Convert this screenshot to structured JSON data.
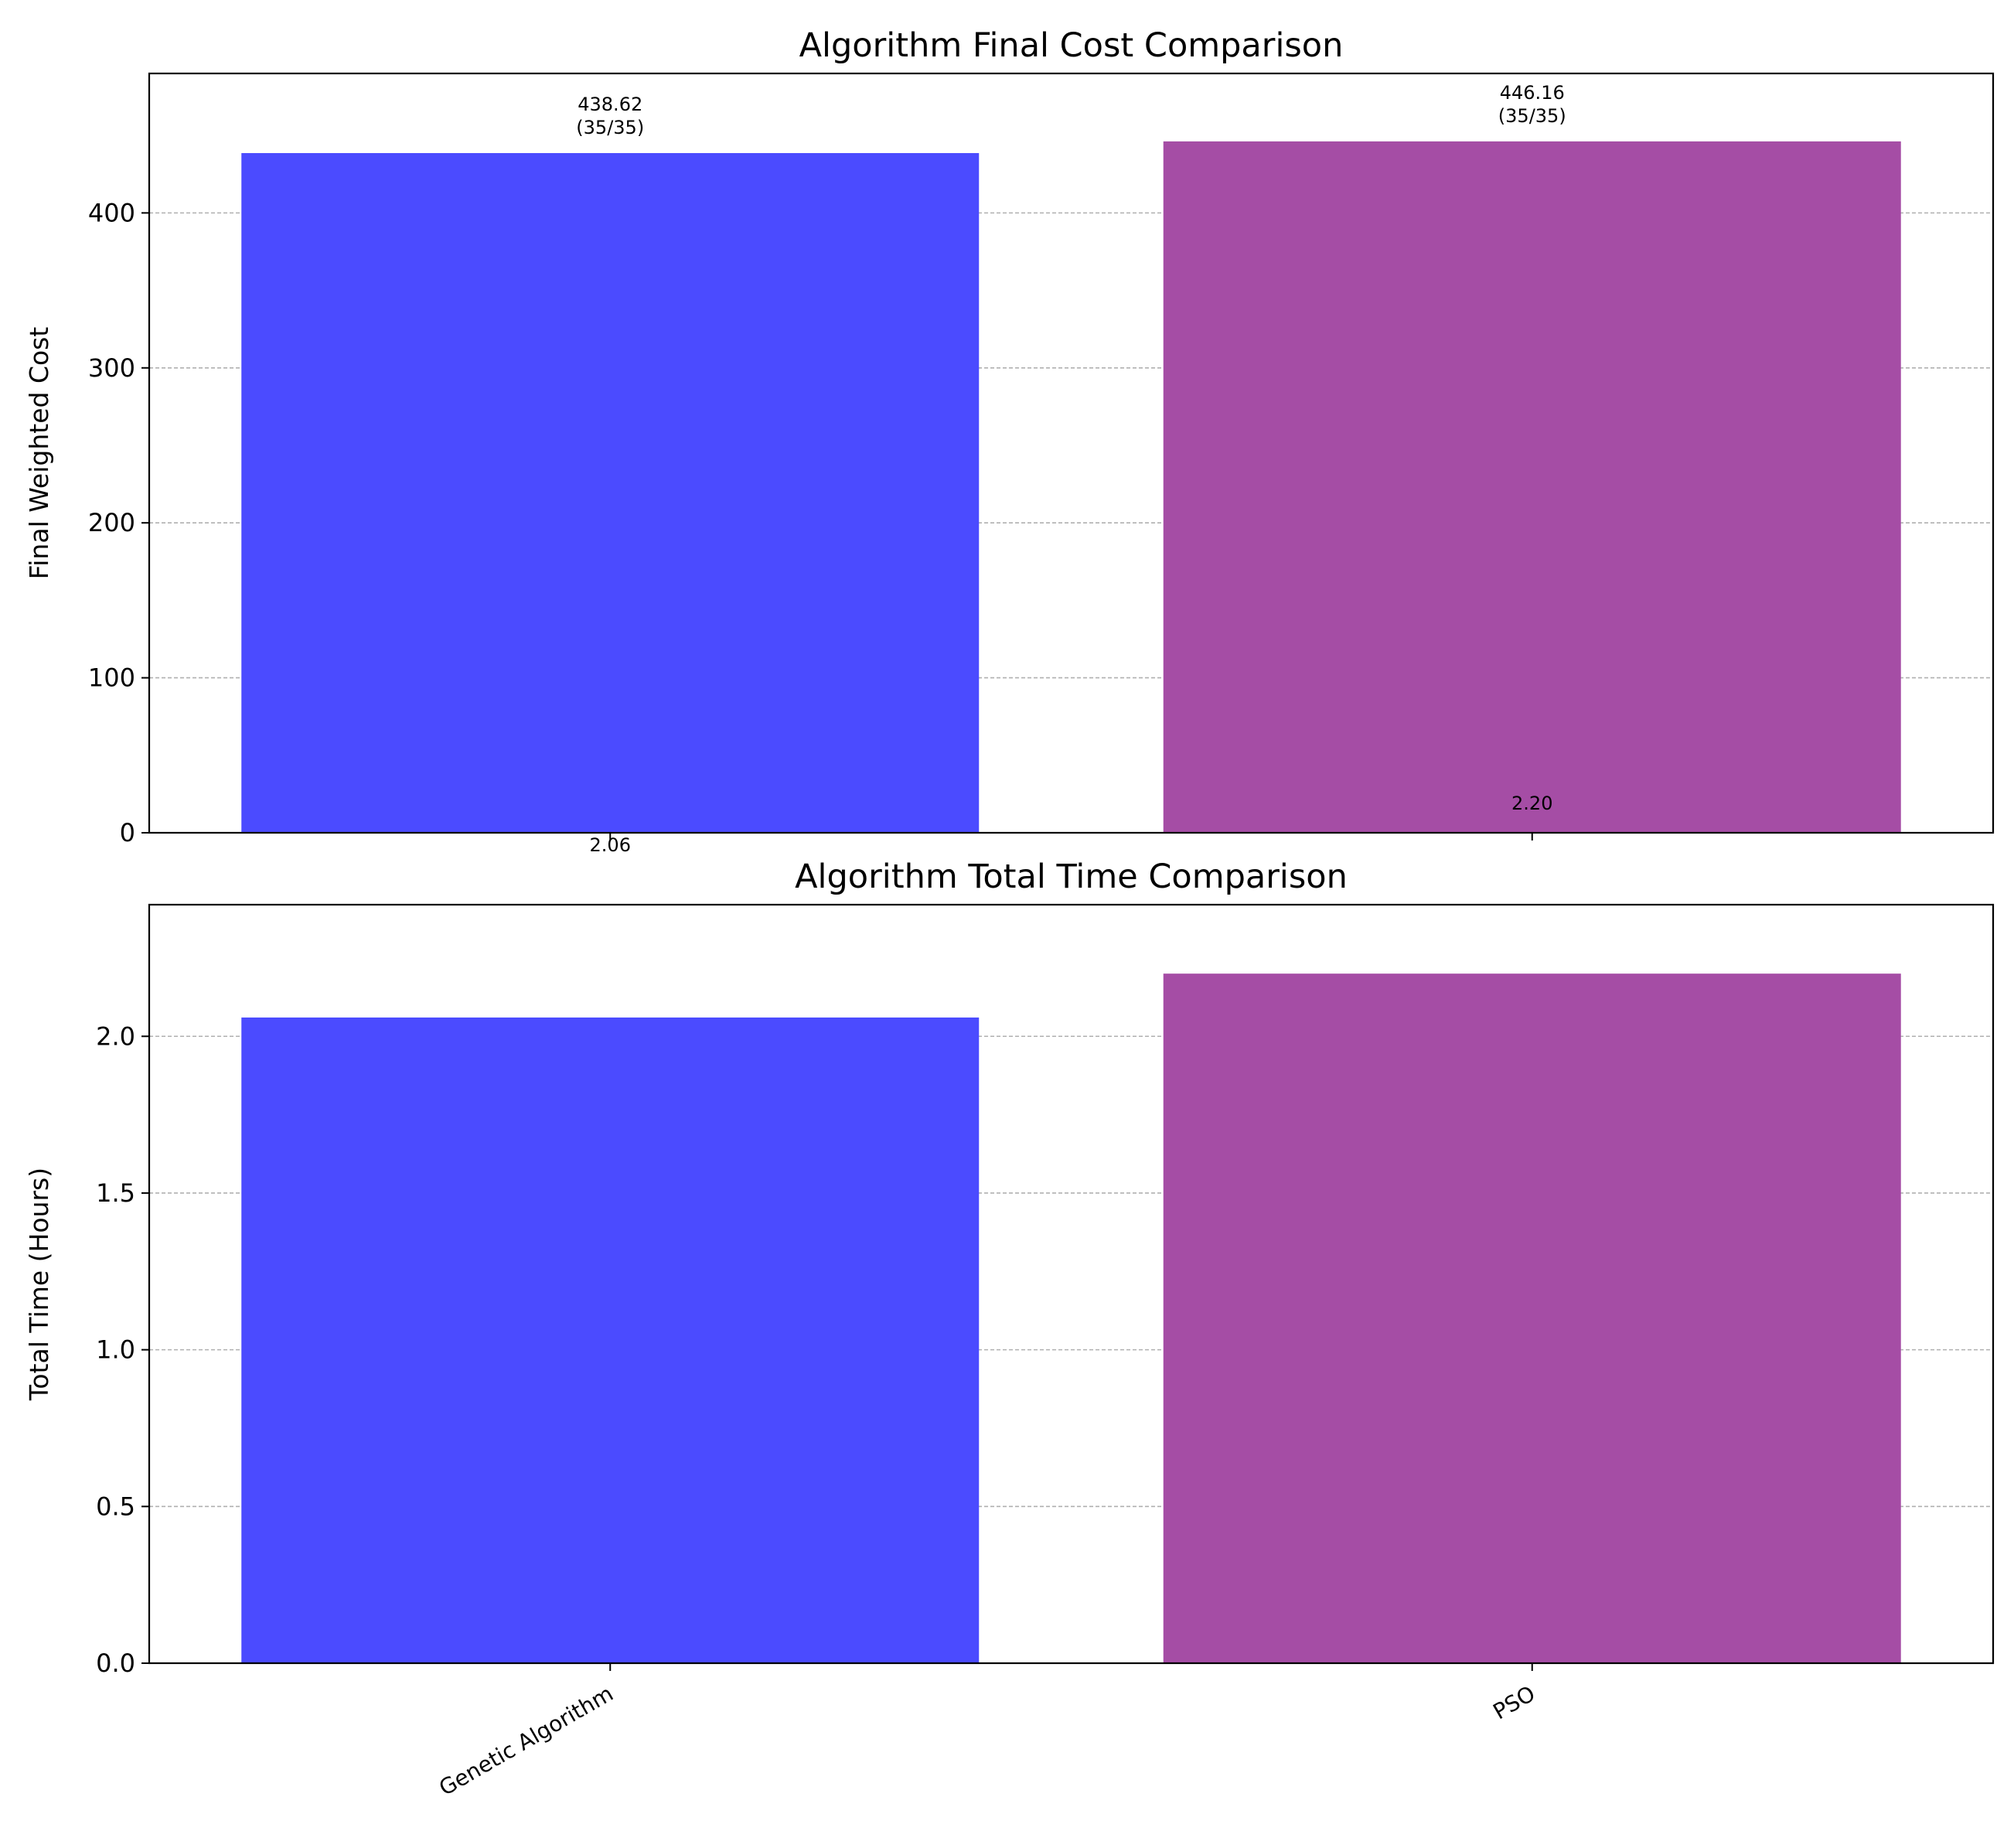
{
  "chart_data": [
    {
      "type": "bar",
      "title": "Algorithm Final Cost Comparison",
      "xlabel": "",
      "ylabel": "Final Weighted Cost",
      "categories": [
        "Genetic Algorithm",
        "PSO"
      ],
      "values": [
        438.62,
        446.16
      ],
      "colors": [
        "#4b4bff",
        "#a54da5"
      ],
      "bar_labels": [
        [
          "438.62",
          "(35/35)"
        ],
        [
          "446.16",
          "(35/35)"
        ]
      ],
      "ylim": [
        0,
        490
      ],
      "yticks": [
        0,
        100,
        200,
        300,
        400
      ],
      "ytick_labels": [
        "0",
        "100",
        "200",
        "300",
        "400"
      ],
      "grid": "y-dashed",
      "show_xtick_labels": false
    },
    {
      "type": "bar",
      "title": "Algorithm Total Time Comparison",
      "xlabel": "",
      "ylabel": "Total Time (Hours)",
      "categories": [
        "Genetic Algorithm",
        "PSO"
      ],
      "values": [
        2.06,
        2.2
      ],
      "colors": [
        "#4b4bff",
        "#a54da5"
      ],
      "bar_labels": [
        [
          "2.06"
        ],
        [
          "2.20"
        ]
      ],
      "ylim": [
        0,
        2.42
      ],
      "yticks": [
        0,
        0.5,
        1.0,
        1.5,
        2.0
      ],
      "ytick_labels": [
        "0.0",
        "0.5",
        "1.0",
        "1.5",
        "2.0"
      ],
      "grid": "y-dashed",
      "show_xtick_labels": true
    }
  ]
}
